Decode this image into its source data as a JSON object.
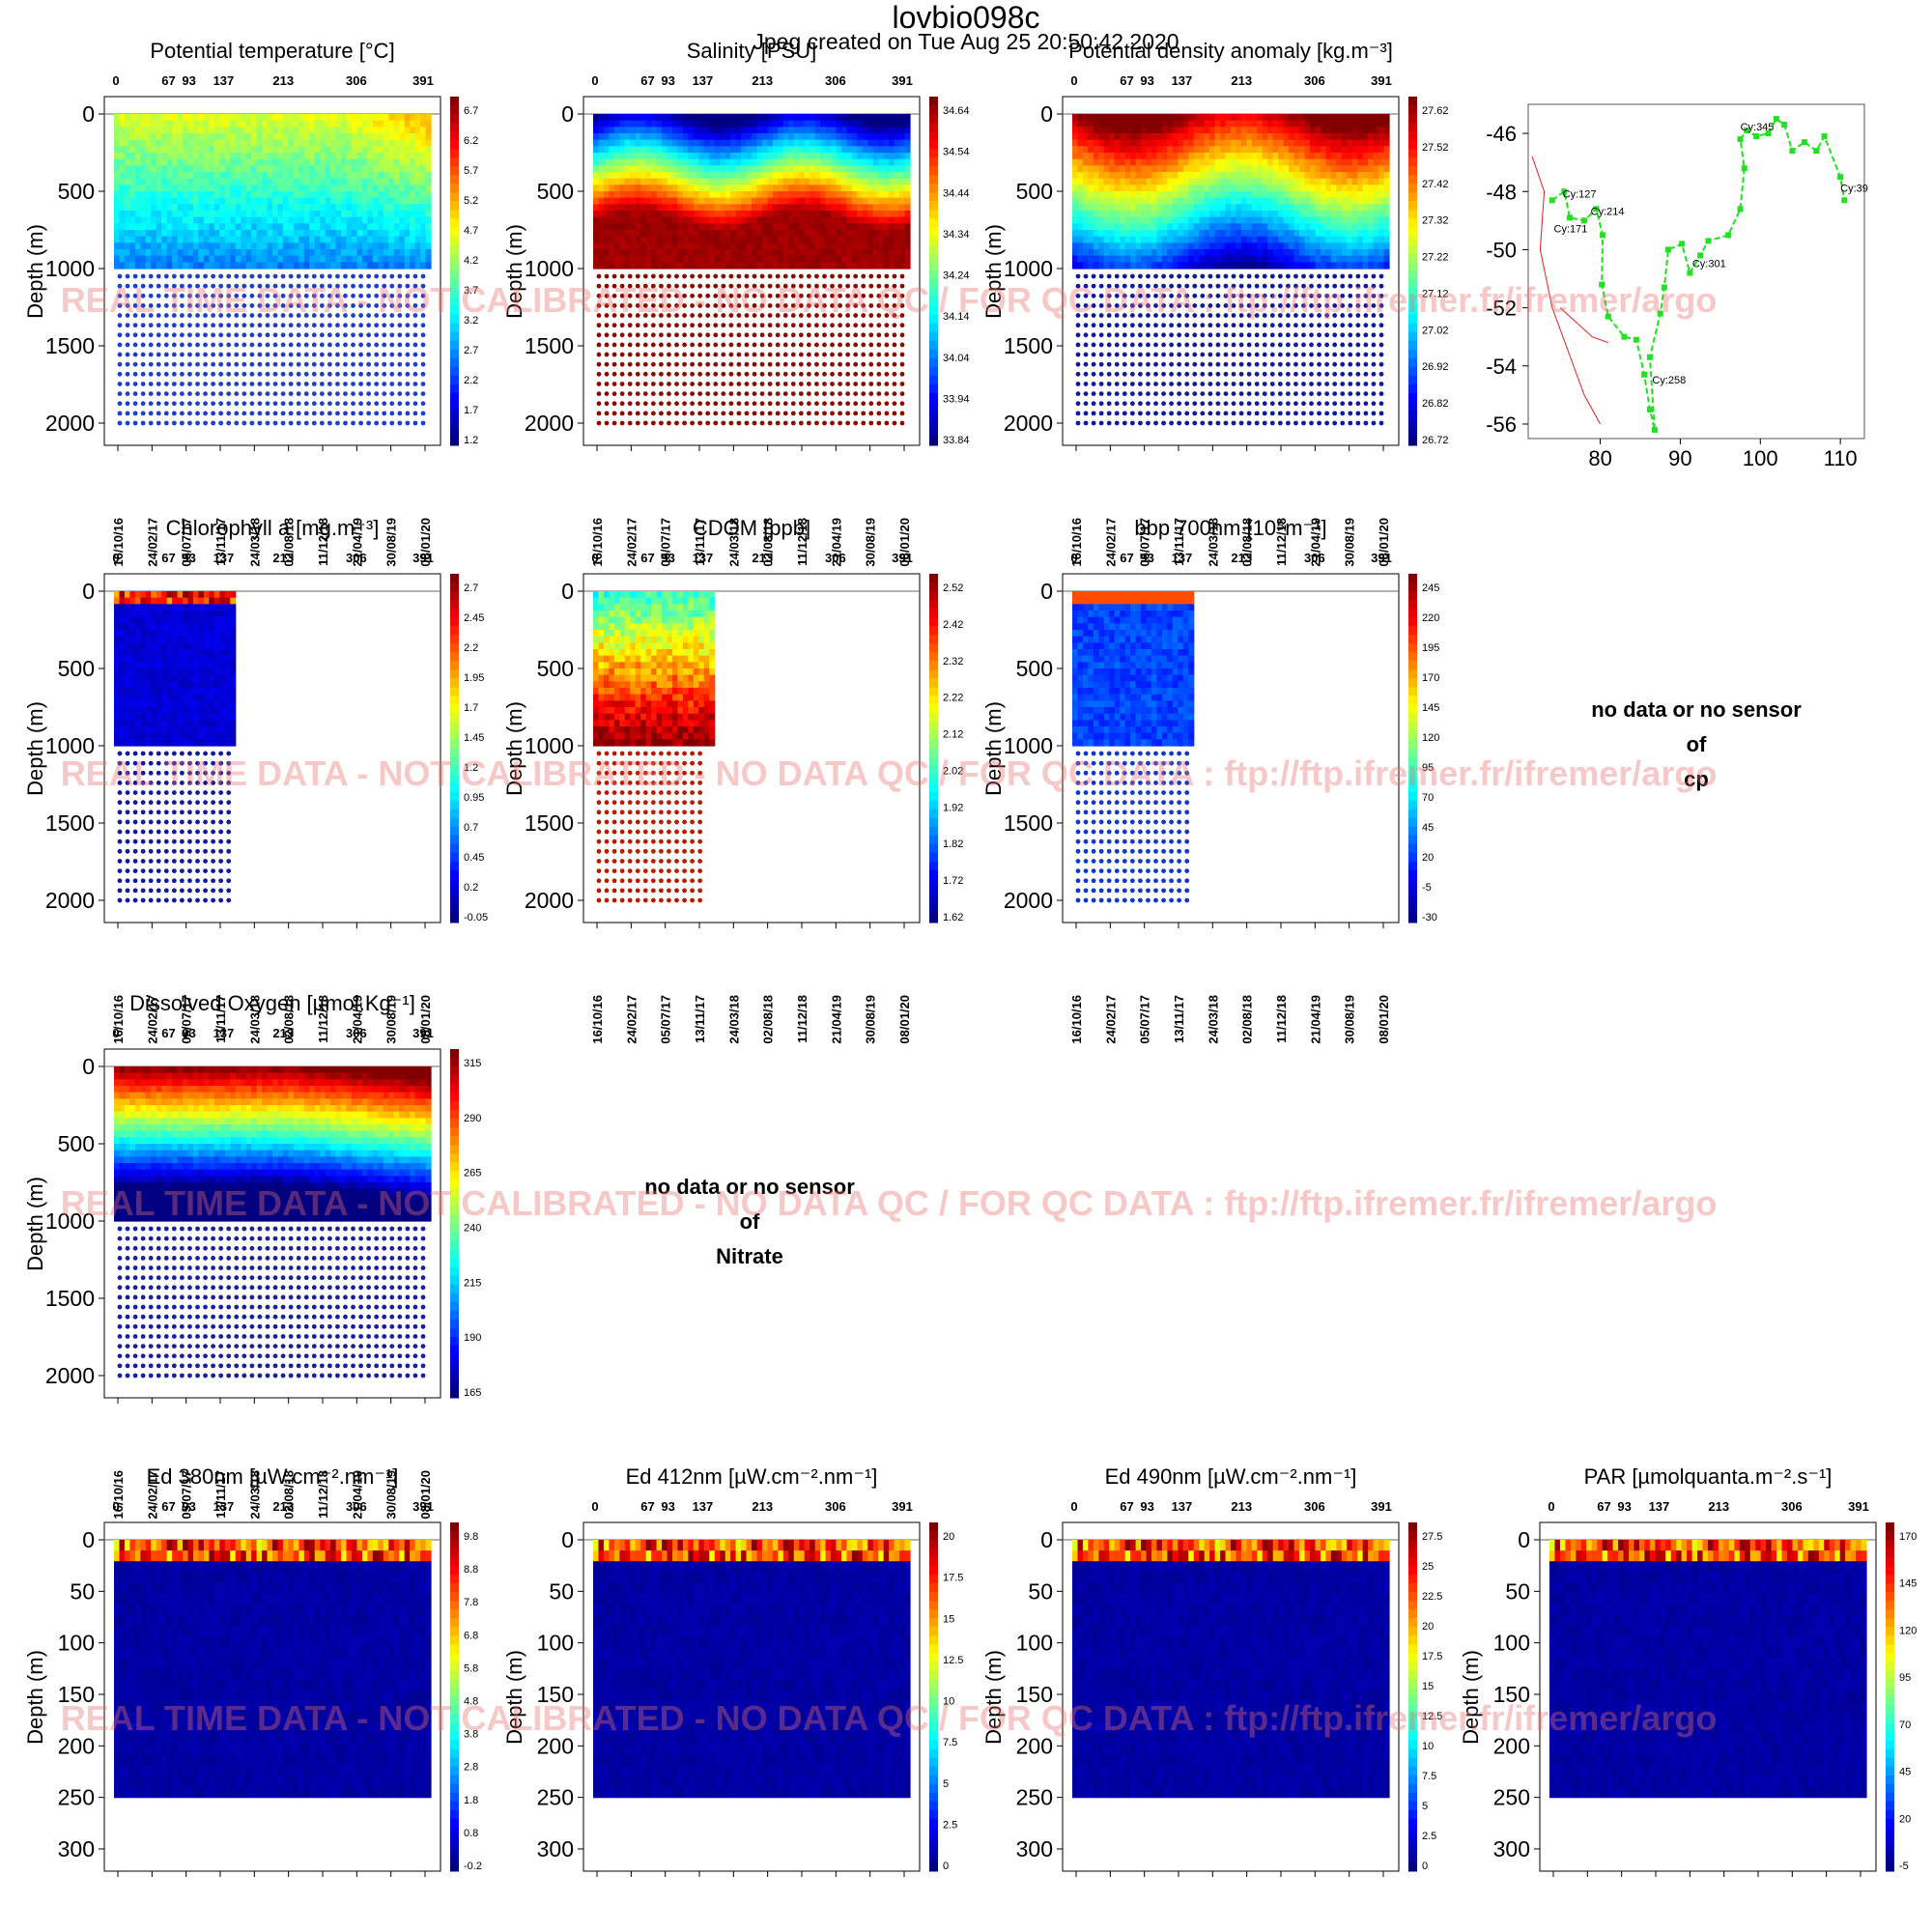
{
  "header": {
    "float_id": "lovbio098c",
    "created": "Jpeg created on  Tue Aug 25 20:50:42 2020"
  },
  "watermark": "REAL TIME DATA - NOT CALIBRATED - NO DATA QC   /  FOR QC DATA : ftp://ftp.ifremer.fr/ifremer/argo",
  "common": {
    "depth_label": "Depth (m)",
    "cycle_ticks": [
      "0",
      "67",
      "93",
      "137",
      "213",
      "306",
      "391"
    ],
    "date_ticks": [
      "16/10/16",
      "24/02/17",
      "05/07/17",
      "13/11/17",
      "24/03/18",
      "02/08/18",
      "11/12/18",
      "21/04/19",
      "30/08/19",
      "08/01/20"
    ],
    "depth_ticks_2000": [
      "0",
      "500",
      "1000",
      "1500",
      "2000"
    ],
    "depth_ticks_300": [
      "0",
      "50",
      "100",
      "150",
      "200",
      "250",
      "300"
    ],
    "no_data": {
      "line1": "no data or no sensor",
      "line2": "of"
    }
  },
  "chart_data": [
    {
      "id": "temp",
      "type": "heatmap",
      "title": "Potential temperature [°C]",
      "xlabel": "",
      "ylabel": "Depth (m)",
      "ylim": [
        2000,
        0
      ],
      "colorbar": [
        "6.7",
        "6.2",
        "5.7",
        "5.2",
        "4.7",
        "4.2",
        "3.7",
        "3.2",
        "2.7",
        "2.2",
        "1.7",
        "1.2"
      ]
    },
    {
      "id": "sal",
      "type": "heatmap",
      "title": "Salinity [PSU]",
      "xlabel": "",
      "ylabel": "Depth (m)",
      "ylim": [
        2000,
        0
      ],
      "colorbar": [
        "34.64",
        "34.54",
        "34.44",
        "34.34",
        "34.24",
        "34.14",
        "34.04",
        "33.94",
        "33.84"
      ]
    },
    {
      "id": "dens",
      "type": "heatmap",
      "title": "Potential density anomaly [kg.m⁻³]",
      "xlabel": "",
      "ylabel": "Depth (m)",
      "ylim": [
        2000,
        0
      ],
      "colorbar": [
        "27.62",
        "27.52",
        "27.42",
        "27.32",
        "27.22",
        "27.12",
        "27.02",
        "26.92",
        "26.82",
        "26.72"
      ]
    },
    {
      "id": "chla",
      "type": "heatmap",
      "title": "Chlorophyll a [mg.m⁻³]",
      "xlabel": "",
      "ylabel": "Depth (m)",
      "ylim": [
        2000,
        0
      ],
      "colorbar": [
        "2.7",
        "2.45",
        "2.2",
        "1.95",
        "1.7",
        "1.45",
        "1.2",
        "0.95",
        "0.7",
        "0.45",
        "0.2",
        "-0.05"
      ]
    },
    {
      "id": "cdom",
      "type": "heatmap",
      "title": "CDOM  [ppb]",
      "xlabel": "",
      "ylabel": "Depth (m)",
      "ylim": [
        2000,
        0
      ],
      "colorbar": [
        "2.52",
        "2.42",
        "2.32",
        "2.22",
        "2.12",
        "2.02",
        "1.92",
        "1.82",
        "1.72",
        "1.62"
      ]
    },
    {
      "id": "bbp",
      "type": "heatmap",
      "title": "bbp 700nm [10⁵m⁻¹]",
      "xlabel": "",
      "ylabel": "Depth (m)",
      "ylim": [
        2000,
        0
      ],
      "colorbar": [
        "245",
        "220",
        "195",
        "170",
        "145",
        "120",
        "95",
        "70",
        "45",
        "20",
        "-5",
        "-30"
      ]
    },
    {
      "id": "doxy",
      "type": "heatmap",
      "title": "Dissolved Oxygen [µmol.Kg⁻¹]",
      "xlabel": "",
      "ylabel": "Depth (m)",
      "ylim": [
        2000,
        0
      ],
      "colorbar": [
        "315",
        "290",
        "265",
        "240",
        "215",
        "190",
        "165"
      ]
    },
    {
      "id": "ed380",
      "type": "heatmap",
      "title": "Ed 380nm [µW.cm⁻².nm⁻¹]",
      "xlabel": "",
      "ylabel": "Depth (m)",
      "ylim": [
        300,
        0
      ],
      "colorbar": [
        "9.8",
        "8.8",
        "7.8",
        "6.8",
        "5.8",
        "4.8",
        "3.8",
        "2.8",
        "1.8",
        "0.8",
        "-0.2"
      ]
    },
    {
      "id": "ed412",
      "type": "heatmap",
      "title": "Ed 412nm [µW.cm⁻².nm⁻¹]",
      "xlabel": "",
      "ylabel": "Depth (m)",
      "ylim": [
        300,
        0
      ],
      "colorbar": [
        "20",
        "17.5",
        "15",
        "12.5",
        "10",
        "7.5",
        "5",
        "2.5",
        "0"
      ]
    },
    {
      "id": "ed490",
      "type": "heatmap",
      "title": "Ed 490nm [µW.cm⁻².nm⁻¹]",
      "xlabel": "",
      "ylabel": "Depth (m)",
      "ylim": [
        300,
        0
      ],
      "colorbar": [
        "27.5",
        "25",
        "22.5",
        "20",
        "17.5",
        "15",
        "12.5",
        "10",
        "7.5",
        "5",
        "2.5",
        "0"
      ]
    },
    {
      "id": "par",
      "type": "heatmap",
      "title": "PAR [µmolquanta.m⁻².s⁻¹]",
      "xlabel": "",
      "ylabel": "Depth (m)",
      "ylim": [
        300,
        0
      ],
      "colorbar": [
        "170",
        "145",
        "120",
        "95",
        "70",
        "45",
        "20",
        "-5"
      ]
    },
    {
      "id": "map",
      "type": "scatter",
      "title": "",
      "xlabel": "",
      "ylabel": "",
      "xlim": [
        71,
        113
      ],
      "ylim": [
        -56.5,
        -45
      ],
      "xticks": [
        "80",
        "90",
        "100",
        "110"
      ],
      "yticks": [
        "-46",
        "-48",
        "-50",
        "-52",
        "-54",
        "-56"
      ],
      "cycle_labels": [
        {
          "label": "Cy:127",
          "lon": 75.3,
          "lat": -48.2
        },
        {
          "label": "Cy:171",
          "lon": 74.2,
          "lat": -49.4
        },
        {
          "label": "Cy:214",
          "lon": 78.8,
          "lat": -48.8
        },
        {
          "label": "Cy:345",
          "lon": 97.5,
          "lat": -45.9
        },
        {
          "label": "Cy:39",
          "lon": 110,
          "lat": -48.0
        },
        {
          "label": "Cy:301",
          "lon": 91.5,
          "lat": -50.6
        },
        {
          "label": "Cy:258",
          "lon": 86.5,
          "lat": -54.6
        }
      ]
    }
  ],
  "no_data_panels": {
    "cp": "cp",
    "nitrate": "Nitrate"
  }
}
